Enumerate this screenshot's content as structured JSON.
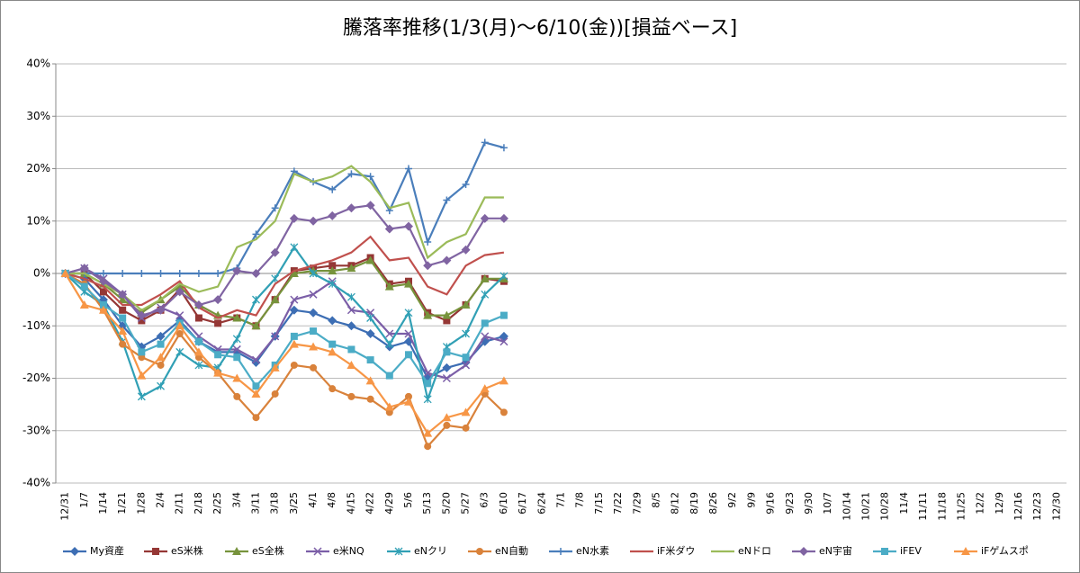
{
  "chart_data": {
    "type": "line",
    "title": "騰落率推移(1/3(月)～6/10(金))[損益ベース]",
    "categories": [
      "12/31",
      "1/7",
      "1/14",
      "1/21",
      "1/28",
      "2/4",
      "2/11",
      "2/18",
      "2/25",
      "3/4",
      "3/11",
      "3/18",
      "3/25",
      "4/1",
      "4/8",
      "4/15",
      "4/22",
      "4/29",
      "5/6",
      "5/13",
      "5/20",
      "5/27",
      "6/3",
      "6/10",
      "6/17",
      "6/24",
      "7/1",
      "7/8",
      "7/15",
      "7/22",
      "7/29",
      "8/5",
      "8/12",
      "8/19",
      "8/26",
      "9/2",
      "9/9",
      "9/16",
      "9/23",
      "9/30",
      "10/7",
      "10/14",
      "10/21",
      "10/28",
      "11/4",
      "11/11",
      "11/18",
      "11/25",
      "12/2",
      "12/9",
      "12/16",
      "12/23",
      "12/30"
    ],
    "ylim": [
      -40,
      40
    ],
    "yticks": [
      {
        "value": -40,
        "label": "-40%"
      },
      {
        "value": -30,
        "label": "-30%"
      },
      {
        "value": -20,
        "label": "-20%"
      },
      {
        "value": -10,
        "label": "-10%"
      },
      {
        "value": 0,
        "label": "0%"
      },
      {
        "value": 10,
        "label": "10%"
      },
      {
        "value": 20,
        "label": "20%"
      },
      {
        "value": 30,
        "label": "30%"
      },
      {
        "value": 40,
        "label": "40%"
      }
    ],
    "grid": true,
    "legend": "bottom",
    "series": [
      {
        "name": "My資産",
        "color": "#3d6eb4",
        "marker": "diamond",
        "values": [
          0,
          -1,
          -5,
          -10,
          -14,
          -12,
          -9,
          -13,
          -15,
          -15,
          -17,
          -12,
          -7,
          -7.5,
          -9,
          -10,
          -11.5,
          -14,
          -13,
          -20,
          -18,
          -17,
          -13,
          -12,
          null,
          null,
          null,
          null,
          null,
          null,
          null,
          null,
          null,
          null,
          null,
          null,
          null,
          null,
          null,
          null,
          null,
          null,
          null,
          null,
          null,
          null,
          null,
          null,
          null,
          null,
          null,
          null,
          null
        ]
      },
      {
        "name": "eS米株",
        "color": "#953735",
        "marker": "square",
        "values": [
          0,
          0,
          -3.5,
          -7,
          -9,
          -7,
          -3,
          -8.5,
          -9.5,
          -8.5,
          -10,
          -5,
          0.5,
          1,
          1.5,
          1.5,
          3,
          -2,
          -1.5,
          -7.5,
          -9,
          -6,
          -1,
          -1.5,
          null,
          null,
          null,
          null,
          null,
          null,
          null,
          null,
          null,
          null,
          null,
          null,
          null,
          null,
          null,
          null,
          null,
          null,
          null,
          null,
          null,
          null,
          null,
          null,
          null,
          null,
          null,
          null,
          null
        ]
      },
      {
        "name": "eS全株",
        "color": "#77933c",
        "marker": "triangle",
        "values": [
          0,
          0,
          -2,
          -5,
          -7.5,
          -5,
          -2.5,
          -6,
          -8,
          -8.5,
          -10,
          -5,
          0,
          0.5,
          0.5,
          1,
          2.5,
          -2.5,
          -2,
          -8,
          -8,
          -6,
          -1,
          -1,
          null,
          null,
          null,
          null,
          null,
          null,
          null,
          null,
          null,
          null,
          null,
          null,
          null,
          null,
          null,
          null,
          null,
          null,
          null,
          null,
          null,
          null,
          null,
          null,
          null,
          null,
          null,
          null,
          null
        ]
      },
      {
        "name": "e米NQ",
        "color": "#7b5ea7",
        "marker": "x",
        "values": [
          0,
          1,
          -1,
          -4,
          -8.5,
          -6.5,
          -8,
          -12,
          -14.5,
          -14.5,
          -16.5,
          -12,
          -5,
          -4,
          -1.5,
          -7,
          -7.5,
          -11.5,
          -11.5,
          -19,
          -20,
          -17.5,
          -12,
          -13,
          null,
          null,
          null,
          null,
          null,
          null,
          null,
          null,
          null,
          null,
          null,
          null,
          null,
          null,
          null,
          null,
          null,
          null,
          null,
          null,
          null,
          null,
          null,
          null,
          null,
          null,
          null,
          null,
          null
        ]
      },
      {
        "name": "eNクリ",
        "color": "#31a0b5",
        "marker": "star",
        "values": [
          0,
          -3.5,
          -6,
          -13,
          -23.5,
          -21.5,
          -15,
          -17.5,
          -18,
          -12.5,
          -5,
          -1,
          5,
          0,
          -2,
          -4.5,
          -8.5,
          -13.5,
          -7.5,
          -24,
          -14,
          -11.5,
          -4,
          -0.5,
          null,
          null,
          null,
          null,
          null,
          null,
          null,
          null,
          null,
          null,
          null,
          null,
          null,
          null,
          null,
          null,
          null,
          null,
          null,
          null,
          null,
          null,
          null,
          null,
          null,
          null,
          null,
          null,
          null
        ]
      },
      {
        "name": "eN自動",
        "color": "#d9823b",
        "marker": "circle",
        "values": [
          0,
          -2,
          -7,
          -13.5,
          -16,
          -17.5,
          -11.5,
          -16,
          -19,
          -23.5,
          -27.5,
          -23,
          -17.5,
          -18,
          -22,
          -23.5,
          -24,
          -26.5,
          -23.5,
          -33,
          -29,
          -29.5,
          -23,
          -26.5,
          null,
          null,
          null,
          null,
          null,
          null,
          null,
          null,
          null,
          null,
          null,
          null,
          null,
          null,
          null,
          null,
          null,
          null,
          null,
          null,
          null,
          null,
          null,
          null,
          null,
          null,
          null,
          null,
          null
        ]
      },
      {
        "name": "eN水素",
        "color": "#4a7ebb",
        "marker": "plus",
        "values": [
          0,
          0,
          0,
          0,
          0,
          0,
          0,
          0,
          0,
          1,
          7.5,
          12.5,
          19.5,
          17.5,
          16,
          19,
          18.5,
          12,
          20,
          6,
          14,
          17,
          25,
          24,
          null,
          null,
          null,
          null,
          null,
          null,
          null,
          null,
          null,
          null,
          null,
          null,
          null,
          null,
          null,
          null,
          null,
          null,
          null,
          null,
          null,
          null,
          null,
          null,
          null,
          null,
          null,
          null,
          null
        ]
      },
      {
        "name": "iF米ダウ",
        "color": "#c0504d",
        "marker": "none",
        "values": [
          0,
          -1,
          -2.5,
          -6,
          -6,
          -4,
          -1.5,
          -6.5,
          -8.5,
          -7,
          -8,
          -2,
          0.5,
          1.5,
          2.5,
          4,
          7,
          2.5,
          3,
          -2.5,
          -4,
          1.5,
          3.5,
          4,
          null,
          null,
          null,
          null,
          null,
          null,
          null,
          null,
          null,
          null,
          null,
          null,
          null,
          null,
          null,
          null,
          null,
          null,
          null,
          null,
          null,
          null,
          null,
          null,
          null,
          null,
          null,
          null,
          null
        ]
      },
      {
        "name": "eNドロ",
        "color": "#9bbb59",
        "marker": "none",
        "values": [
          0,
          0,
          -2,
          -4,
          -7,
          -5,
          -2,
          -3.5,
          -2.5,
          5,
          6.5,
          10,
          19,
          17.5,
          18.5,
          20.5,
          17.5,
          12.5,
          13.5,
          3,
          6,
          7.5,
          14.5,
          14.5,
          null,
          null,
          null,
          null,
          null,
          null,
          null,
          null,
          null,
          null,
          null,
          null,
          null,
          null,
          null,
          null,
          null,
          null,
          null,
          null,
          null,
          null,
          null,
          null,
          null,
          null,
          null,
          null,
          null
        ]
      },
      {
        "name": "eN宇宙",
        "color": "#8064a2",
        "marker": "diamond",
        "values": [
          0,
          1,
          -1.5,
          -4,
          -8,
          -7,
          -3.5,
          -6,
          -5,
          0.5,
          0,
          4,
          10.5,
          10,
          11,
          12.5,
          13,
          8.5,
          9,
          1.5,
          2.5,
          4.5,
          10.5,
          10.5,
          null,
          null,
          null,
          null,
          null,
          null,
          null,
          null,
          null,
          null,
          null,
          null,
          null,
          null,
          null,
          null,
          null,
          null,
          null,
          null,
          null,
          null,
          null,
          null,
          null,
          null,
          null,
          null,
          null
        ]
      },
      {
        "name": "iFEV",
        "color": "#4bacc6",
        "marker": "square",
        "values": [
          0,
          -2.5,
          -6,
          -8.5,
          -15,
          -13.5,
          -9.5,
          -13,
          -15.5,
          -16,
          -21.5,
          -17.5,
          -12,
          -11,
          -13.5,
          -14.5,
          -16.5,
          -19.5,
          -15.5,
          -21,
          -15,
          -16,
          -9.5,
          -8,
          null,
          null,
          null,
          null,
          null,
          null,
          null,
          null,
          null,
          null,
          null,
          null,
          null,
          null,
          null,
          null,
          null,
          null,
          null,
          null,
          null,
          null,
          null,
          null,
          null,
          null,
          null,
          null,
          null
        ]
      },
      {
        "name": "iFゲムスポ",
        "color": "#f79646",
        "marker": "triangle",
        "values": [
          0,
          -6,
          -7,
          -11,
          -19.5,
          -16,
          -10,
          -15,
          -19,
          -20,
          -23,
          -18,
          -13.5,
          -14,
          -15,
          -17.5,
          -20.5,
          -25.5,
          -24.5,
          -30.5,
          -27.5,
          -26.5,
          -22,
          -20.5,
          null,
          null,
          null,
          null,
          null,
          null,
          null,
          null,
          null,
          null,
          null,
          null,
          null,
          null,
          null,
          null,
          null,
          null,
          null,
          null,
          null,
          null,
          null,
          null,
          null,
          null,
          null,
          null,
          null
        ]
      }
    ]
  }
}
